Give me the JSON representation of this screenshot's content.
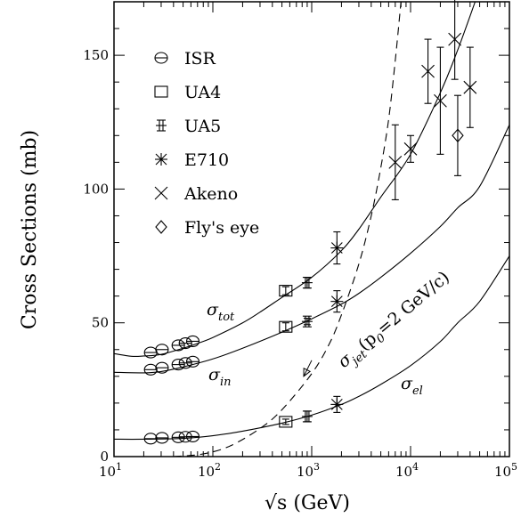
{
  "chart_data": {
    "type": "scatter",
    "xlabel": "√s  (GeV)",
    "ylabel": "Cross Sections (mb)",
    "xscale": "log",
    "xlim": [
      10,
      100000
    ],
    "ylim": [
      0,
      170
    ],
    "xticks": [
      {
        "value": 10,
        "base": "10",
        "exp": "1"
      },
      {
        "value": 100,
        "base": "10",
        "exp": "2"
      },
      {
        "value": 1000,
        "base": "10",
        "exp": "3"
      },
      {
        "value": 10000,
        "base": "10",
        "exp": "4"
      },
      {
        "value": 100000,
        "base": "10",
        "exp": "5"
      }
    ],
    "yticks": [
      0,
      50,
      100,
      150
    ],
    "grid": false,
    "legend_position": "top-left",
    "legend": [
      {
        "marker": "circle",
        "label": "ISR"
      },
      {
        "marker": "square",
        "label": "UA4"
      },
      {
        "marker": "ua5",
        "label": "UA5"
      },
      {
        "marker": "e710",
        "label": "E710"
      },
      {
        "marker": "cross",
        "label": "Akeno"
      },
      {
        "marker": "diamond",
        "label": "Fly's eye"
      }
    ],
    "curves": [
      {
        "label_main": "σ",
        "label_sub": "tot",
        "style": "solid",
        "points": [
          [
            10,
            38.5
          ],
          [
            15,
            37.5
          ],
          [
            20,
            37.6
          ],
          [
            30,
            38.2
          ],
          [
            50,
            40.5
          ],
          [
            70,
            42.3
          ],
          [
            100,
            44.5
          ],
          [
            200,
            50
          ],
          [
            300,
            54
          ],
          [
            500,
            59.5
          ],
          [
            1000,
            67
          ],
          [
            2000,
            77
          ],
          [
            3000,
            85
          ],
          [
            5000,
            97
          ],
          [
            10000,
            113
          ],
          [
            20000,
            136
          ],
          [
            30000,
            152
          ],
          [
            45000,
            170
          ]
        ]
      },
      {
        "label_main": "σ",
        "label_sub": "in",
        "style": "solid",
        "points": [
          [
            10,
            31.5
          ],
          [
            20,
            31.3
          ],
          [
            30,
            31.8
          ],
          [
            50,
            33.5
          ],
          [
            100,
            36.5
          ],
          [
            200,
            40.5
          ],
          [
            500,
            46.5
          ],
          [
            1000,
            51.5
          ],
          [
            2000,
            57
          ],
          [
            3000,
            61
          ],
          [
            5000,
            67
          ],
          [
            10000,
            76
          ],
          [
            20000,
            86
          ],
          [
            30000,
            93
          ],
          [
            50000,
            101
          ],
          [
            100000,
            124
          ]
        ]
      },
      {
        "label_main": "σ",
        "label_sub": "el",
        "style": "solid",
        "points": [
          [
            10,
            6.5
          ],
          [
            20,
            6.5
          ],
          [
            50,
            6.8
          ],
          [
            100,
            7.8
          ],
          [
            200,
            9.5
          ],
          [
            500,
            12.5
          ],
          [
            1000,
            15.5
          ],
          [
            2000,
            19.5
          ],
          [
            3000,
            22.5
          ],
          [
            5000,
            27
          ],
          [
            10000,
            34
          ],
          [
            20000,
            43
          ],
          [
            30000,
            50
          ],
          [
            50000,
            58
          ],
          [
            100000,
            75
          ]
        ]
      },
      {
        "label_main": "σ",
        "label_sub": "jet",
        "label_rest": "(p",
        "label_rest_sub": "0",
        "label_rest_tail": "=2 GeV/c)",
        "style": "dashed",
        "points": [
          [
            40,
            0
          ],
          [
            80,
            1
          ],
          [
            150,
            4
          ],
          [
            300,
            10.5
          ],
          [
            500,
            17.5
          ],
          [
            1000,
            31
          ],
          [
            1500,
            42
          ],
          [
            2000,
            53
          ],
          [
            3000,
            72
          ],
          [
            4000,
            90
          ],
          [
            5000,
            108
          ],
          [
            6000,
            126
          ],
          [
            7000,
            148
          ],
          [
            8000,
            170
          ]
        ]
      }
    ],
    "series": [
      {
        "marker": "circle",
        "points": [
          [
            23.5,
            38.9
          ],
          [
            30.6,
            40
          ],
          [
            44.7,
            41.6
          ],
          [
            52.8,
            42.4
          ],
          [
            62.7,
            43.1
          ],
          [
            23.5,
            32.5
          ],
          [
            30.6,
            33.2
          ],
          [
            44.7,
            34.4
          ],
          [
            52.8,
            35
          ],
          [
            62.7,
            35.5
          ],
          [
            23.5,
            6.7
          ],
          [
            30.6,
            7
          ],
          [
            44.7,
            7.2
          ],
          [
            52.8,
            7.4
          ],
          [
            62.7,
            7.5
          ]
        ]
      },
      {
        "marker": "square",
        "points": [
          [
            546,
            62,
            1.5
          ],
          [
            546,
            48.5,
            1.5
          ],
          [
            546,
            13,
            1
          ]
        ]
      },
      {
        "marker": "ua5",
        "points": [
          [
            900,
            65,
            2
          ],
          [
            900,
            50.5,
            1.2
          ],
          [
            900,
            15,
            2
          ]
        ]
      },
      {
        "marker": "e710",
        "points": [
          [
            1800,
            78,
            6
          ],
          [
            1800,
            58,
            4
          ],
          [
            1800,
            19.5,
            3
          ]
        ]
      },
      {
        "marker": "cross",
        "points": [
          [
            7000,
            110,
            14
          ],
          [
            10000,
            115,
            5
          ],
          [
            15000,
            144,
            12
          ],
          [
            20000,
            133,
            20
          ],
          [
            28000,
            156,
            15
          ],
          [
            40000,
            138,
            15
          ]
        ]
      },
      {
        "marker": "diamond",
        "points": [
          [
            30000,
            120,
            15
          ]
        ]
      }
    ],
    "arrow": {
      "from": [
        1000,
        36
      ],
      "to": [
        830,
        30
      ]
    }
  }
}
